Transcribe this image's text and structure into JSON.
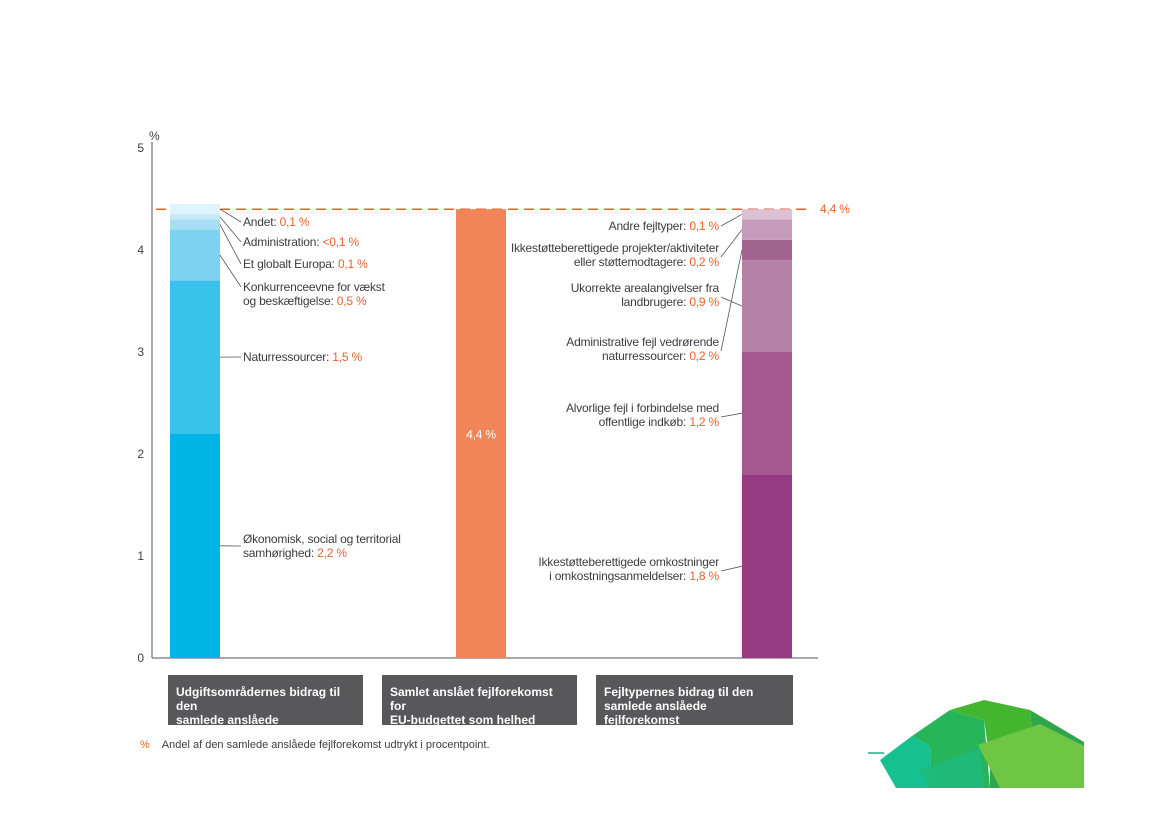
{
  "chart_data": {
    "type": "bar",
    "y_unit": "%",
    "ylim": [
      0,
      5
    ],
    "yticks": [
      "0",
      "1",
      "2",
      "3",
      "4",
      "5"
    ],
    "reference_line": {
      "value": 4.4,
      "label": "4,4 %",
      "style": "dashed",
      "color": "#e5622b"
    },
    "stacks": [
      {
        "caption": "Udgiftsområdernes bidrag til den samlede anslåede fejlforekomst",
        "caption_lines": [
          "Udgiftsområdernes bidrag til den",
          "samlede anslåede fejlforekomst"
        ],
        "segments": [
          {
            "name": "Økonomisk, social og territorial samhørighed",
            "lines": [
              "Økonomisk, social og territorial",
              "samhørighed: "
            ],
            "value_label": "2,2 %",
            "value": 2.2,
            "color": "#00b4e6"
          },
          {
            "name": "Naturressourcer",
            "lines": [
              "Naturressourcer: "
            ],
            "value_label": "1,5 %",
            "value": 1.5,
            "color": "#38c3ed"
          },
          {
            "name": "Konkurrenceevne for vækst og beskæftigelse",
            "lines": [
              "Konkurrenceevne for vækst",
              "og beskæftigelse: "
            ],
            "value_label": "0,5 %",
            "value": 0.5,
            "color": "#7dd2f2"
          },
          {
            "name": "Et globalt Europa",
            "lines": [
              "Et globalt Europa: "
            ],
            "value_label": "0,1 %",
            "value": 0.1,
            "color": "#a6def5"
          },
          {
            "name": "Administration",
            "lines": [
              "Administration: "
            ],
            "value_label": "<0,1 %",
            "value": 0.05,
            "color": "#c6e9f8"
          },
          {
            "name": "Andet",
            "lines": [
              "Andet: "
            ],
            "value_label": "0,1 %",
            "value": 0.1,
            "color": "#def3fb"
          }
        ]
      },
      {
        "caption": "Samlet anslået fejlforekomst for EU-budgettet som helhed",
        "caption_lines": [
          "Samlet anslået fejlforekomst for",
          "EU-budgettet som helhed"
        ],
        "segments": [
          {
            "name": "Samlet",
            "lines": [
              ""
            ],
            "value_label": "4,4 %",
            "value": 4.4,
            "color": "#f28458"
          }
        ]
      },
      {
        "caption": "Fejltypernes bidrag til den samlede anslåede fejlforekomst",
        "caption_lines": [
          "Fejltypernes bidrag til den",
          "samlede anslåede fejlforekomst"
        ],
        "segments": [
          {
            "name": "Ikkestøtteberettigede omkostninger i omkostningsanmeldelser",
            "lines": [
              "Ikkestøtteberettigede omkostninger",
              "i omkostningsanmeldelser: "
            ],
            "value_label": "1,8 %",
            "value": 1.8,
            "color": "#963b82"
          },
          {
            "name": "Alvorlige fejl i forbindelse med offentlige indkøb",
            "lines": [
              "Alvorlige fejl i forbindelse med",
              "offentlige indkøb: "
            ],
            "value_label": "1,2 %",
            "value": 1.2,
            "color": "#a4588f"
          },
          {
            "name": "Ukorrekte arealangivelser fra landbrugere",
            "lines": [
              "Ukorrekte arealangivelser fra",
              "landbrugere: "
            ],
            "value_label": "0,9 %",
            "value": 0.9,
            "color": "#b581a9"
          },
          {
            "name": "Administrative fejl vedrørende naturressourcer",
            "lines": [
              "Administrative fejl vedrørende",
              "naturressourcer: "
            ],
            "value_label": "0,2 %",
            "value": 0.2,
            "color": "#a0628f"
          },
          {
            "name": "Ikkestøtteberettigede projekter/aktiviteter eller støttemodtagere",
            "lines": [
              "Ikkestøtteberettigede projekter/aktiviteter",
              "eller støttemodtagere: "
            ],
            "value_label": "0,2 %",
            "value": 0.2,
            "color": "#c69bbb"
          },
          {
            "name": "Andre fejltyper",
            "lines": [
              "Andre fejltyper: "
            ],
            "value_label": "0,1 %",
            "value": 0.1,
            "color": "#dcc0d3"
          }
        ]
      }
    ],
    "footnote_symbol": "%",
    "footnote_text": "Andel af den samlede anslåede fejlforekomst udtrykt i procentpoint."
  }
}
